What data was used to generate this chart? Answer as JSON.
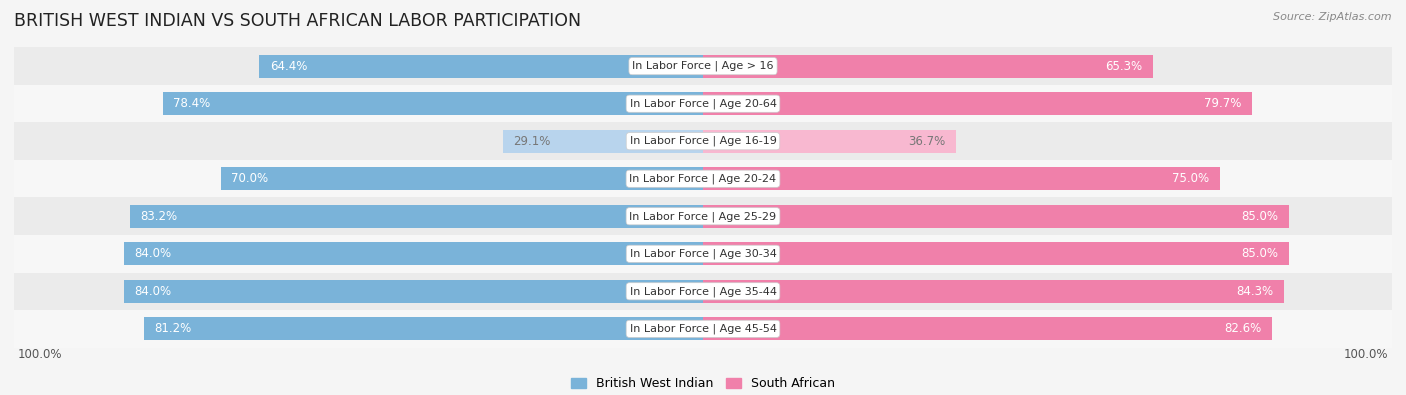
{
  "title": "BRITISH WEST INDIAN VS SOUTH AFRICAN LABOR PARTICIPATION",
  "source": "Source: ZipAtlas.com",
  "categories": [
    "In Labor Force | Age > 16",
    "In Labor Force | Age 20-64",
    "In Labor Force | Age 16-19",
    "In Labor Force | Age 20-24",
    "In Labor Force | Age 25-29",
    "In Labor Force | Age 30-34",
    "In Labor Force | Age 35-44",
    "In Labor Force | Age 45-54"
  ],
  "left_values": [
    64.4,
    78.4,
    29.1,
    70.0,
    83.2,
    84.0,
    84.0,
    81.2
  ],
  "right_values": [
    65.3,
    79.7,
    36.7,
    75.0,
    85.0,
    85.0,
    84.3,
    82.6
  ],
  "left_color": "#7ab3d9",
  "right_color": "#f080aa",
  "left_color_light": "#b8d4ed",
  "right_color_light": "#f8b8d0",
  "bar_height": 0.62,
  "row_bg_even": "#ebebeb",
  "row_bg_odd": "#f7f7f7",
  "background_color": "#f5f5f5",
  "left_label": "British West Indian",
  "right_label": "South African",
  "title_fontsize": 12.5,
  "source_fontsize": 8,
  "value_fontsize": 8.5,
  "cat_fontsize": 8,
  "legend_fontsize": 9,
  "max_value": 100.0,
  "left_axis_label": "100.0%",
  "right_axis_label": "100.0%"
}
